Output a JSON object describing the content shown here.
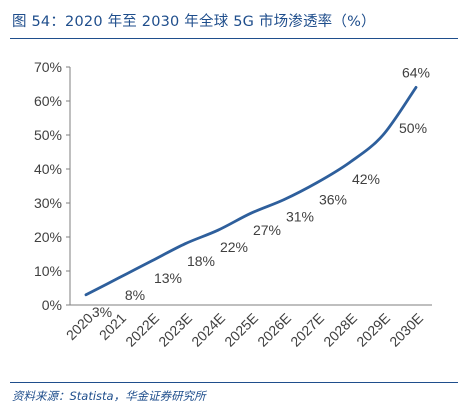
{
  "header": {
    "title": "图 54：2020 年至 2030 年全球 5G 市场渗透率（%）"
  },
  "footer": {
    "source": "资料来源：Statista，华金证券研究所"
  },
  "colors": {
    "accent": "#1f4e8c",
    "line": "#2e5f9c",
    "text": "#404040",
    "axis": "#7f7f7f"
  },
  "chart_data": {
    "type": "line",
    "title": "",
    "xlabel": "",
    "ylabel": "",
    "categories": [
      "2020",
      "2021",
      "2022E",
      "2023E",
      "2024E",
      "2025E",
      "2026E",
      "2027E",
      "2028E",
      "2029E",
      "2030E"
    ],
    "series": [
      {
        "values": [
          3,
          8,
          13,
          18,
          22,
          27,
          31,
          36,
          42,
          50,
          64
        ]
      }
    ],
    "data_labels": [
      "3%",
      "8%",
      "13%",
      "18%",
      "22%",
      "27%",
      "31%",
      "36%",
      "42%",
      "50%",
      "64%"
    ],
    "ylim": [
      0,
      70
    ],
    "yticks": [
      0,
      10,
      20,
      30,
      40,
      50,
      60,
      70
    ],
    "ytick_labels": [
      "0%",
      "10%",
      "20%",
      "30%",
      "40%",
      "50%",
      "60%",
      "70%"
    ],
    "grid": false,
    "legend": "none"
  }
}
